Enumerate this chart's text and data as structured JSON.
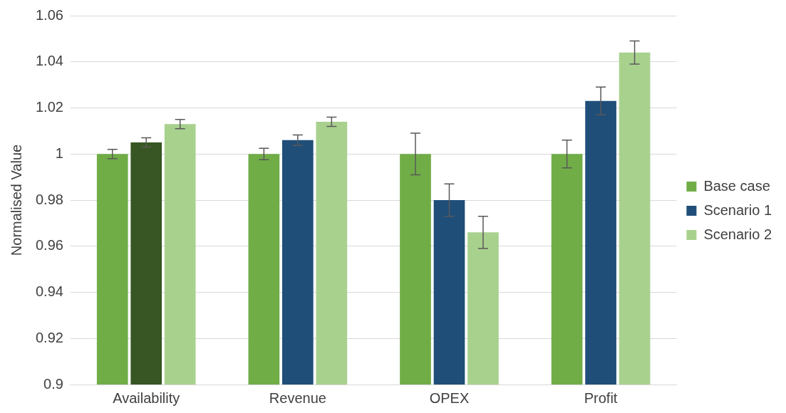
{
  "chart_data": {
    "type": "bar",
    "ylabel": "Normalised Value",
    "categories": [
      "Availability",
      "Revenue",
      "OPEX",
      "Profit"
    ],
    "series": [
      {
        "name": "Base case",
        "color": "#70ad47",
        "values": [
          1,
          1,
          1,
          1
        ],
        "errors": [
          0.002,
          0.0025,
          0.009,
          0.006
        ]
      },
      {
        "name": "Scenario 1",
        "color": "#1f4e79",
        "colors": [
          "#375623",
          "#1f4e79",
          "#1f4e79",
          "#1f4e79"
        ],
        "values": [
          1.005,
          1.006,
          0.98,
          1.023
        ],
        "errors": [
          0.002,
          0.0023,
          0.007,
          0.006
        ]
      },
      {
        "name": "Scenario 2",
        "color": "#a9d18e",
        "values": [
          1.013,
          1.014,
          0.966,
          1.044
        ],
        "errors": [
          0.002,
          0.002,
          0.007,
          0.005
        ]
      }
    ],
    "ylim": [
      0.9,
      1.06
    ],
    "yticks": [
      0.9,
      0.92,
      0.94,
      0.96,
      0.98,
      1,
      1.02,
      1.04,
      1.06
    ],
    "grid": "y",
    "legend": "right"
  }
}
